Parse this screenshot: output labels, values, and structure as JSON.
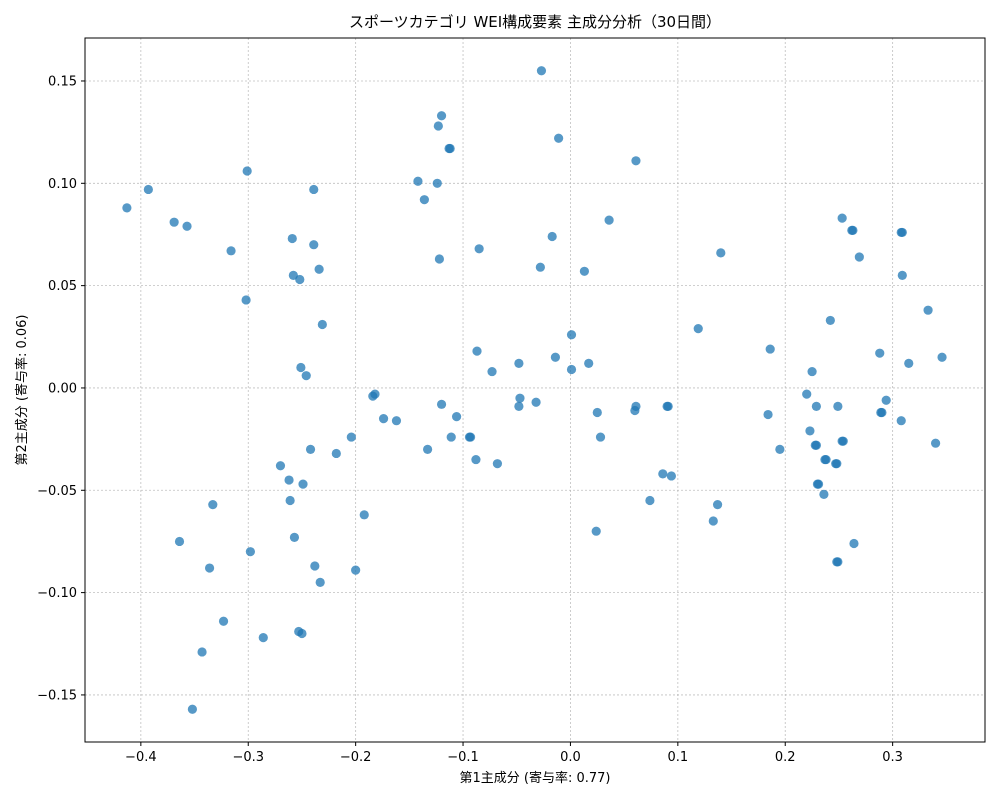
{
  "chart_data": {
    "type": "scatter",
    "title": "スポーツカテゴリ WEI構成要素 主成分分析（30日間）",
    "xlabel": "第1主成分 (寄与率: 0.77)",
    "ylabel": "第2主成分 (寄与率: 0.06)",
    "xlim": [
      -0.452,
      0.386
    ],
    "ylim": [
      -0.173,
      0.171
    ],
    "xticks": [
      -0.4,
      -0.3,
      -0.2,
      -0.1,
      0.0,
      0.1,
      0.2,
      0.3
    ],
    "xtick_labels": [
      "−0.4",
      "−0.3",
      "−0.2",
      "−0.1",
      "0.0",
      "0.1",
      "0.2",
      "0.3"
    ],
    "yticks": [
      -0.15,
      -0.1,
      -0.05,
      0.0,
      0.05,
      0.1,
      0.15
    ],
    "ytick_labels": [
      "−0.15",
      "−0.10",
      "−0.05",
      "0.00",
      "0.05",
      "0.10",
      "0.15"
    ],
    "grid": true,
    "color": "#1f77b4",
    "points": [
      [
        -0.413,
        0.088
      ],
      [
        -0.393,
        0.097
      ],
      [
        -0.369,
        0.081
      ],
      [
        -0.357,
        0.079
      ],
      [
        -0.316,
        0.067
      ],
      [
        -0.301,
        0.106
      ],
      [
        -0.302,
        0.043
      ],
      [
        -0.259,
        0.073
      ],
      [
        -0.258,
        0.055
      ],
      [
        -0.252,
        0.053
      ],
      [
        -0.239,
        0.097
      ],
      [
        -0.239,
        0.07
      ],
      [
        -0.234,
        0.058
      ],
      [
        -0.231,
        0.031
      ],
      [
        -0.251,
        0.01
      ],
      [
        -0.246,
        0.006
      ],
      [
        -0.142,
        0.101
      ],
      [
        -0.136,
        0.092
      ],
      [
        -0.124,
        0.1
      ],
      [
        -0.123,
        0.128
      ],
      [
        -0.12,
        0.133
      ],
      [
        -0.113,
        0.117
      ],
      [
        -0.112,
        0.117
      ],
      [
        -0.122,
        0.063
      ],
      [
        -0.085,
        0.068
      ],
      [
        -0.027,
        0.155
      ],
      [
        -0.011,
        0.122
      ],
      [
        -0.017,
        0.074
      ],
      [
        -0.028,
        0.059
      ],
      [
        0.061,
        0.111
      ],
      [
        0.036,
        0.082
      ],
      [
        0.013,
        0.057
      ],
      [
        0.14,
        0.066
      ],
      [
        0.001,
        0.026
      ],
      [
        -0.087,
        0.018
      ],
      [
        -0.073,
        0.008
      ],
      [
        -0.048,
        0.012
      ],
      [
        -0.014,
        0.015
      ],
      [
        0.001,
        0.009
      ],
      [
        0.017,
        0.012
      ],
      [
        0.119,
        0.029
      ],
      [
        0.186,
        0.019
      ],
      [
        0.225,
        0.008
      ],
      [
        0.242,
        0.033
      ],
      [
        0.253,
        0.083
      ],
      [
        0.262,
        0.077
      ],
      [
        0.263,
        0.077
      ],
      [
        0.269,
        0.064
      ],
      [
        0.308,
        0.076
      ],
      [
        0.309,
        0.076
      ],
      [
        0.309,
        0.055
      ],
      [
        0.333,
        0.038
      ],
      [
        0.288,
        0.017
      ],
      [
        0.315,
        0.012
      ],
      [
        0.346,
        0.015
      ],
      [
        -0.184,
        -0.004
      ],
      [
        -0.182,
        -0.003
      ],
      [
        -0.174,
        -0.015
      ],
      [
        -0.162,
        -0.016
      ],
      [
        -0.204,
        -0.024
      ],
      [
        -0.218,
        -0.032
      ],
      [
        -0.242,
        -0.03
      ],
      [
        -0.27,
        -0.038
      ],
      [
        -0.262,
        -0.045
      ],
      [
        -0.249,
        -0.047
      ],
      [
        -0.261,
        -0.055
      ],
      [
        -0.333,
        -0.057
      ],
      [
        -0.364,
        -0.075
      ],
      [
        -0.298,
        -0.08
      ],
      [
        -0.257,
        -0.073
      ],
      [
        -0.192,
        -0.062
      ],
      [
        -0.238,
        -0.087
      ],
      [
        -0.233,
        -0.095
      ],
      [
        -0.2,
        -0.089
      ],
      [
        -0.336,
        -0.088
      ],
      [
        -0.323,
        -0.114
      ],
      [
        -0.286,
        -0.122
      ],
      [
        -0.253,
        -0.119
      ],
      [
        -0.25,
        -0.12
      ],
      [
        -0.343,
        -0.129
      ],
      [
        -0.352,
        -0.157
      ],
      [
        -0.12,
        -0.008
      ],
      [
        -0.106,
        -0.014
      ],
      [
        -0.111,
        -0.024
      ],
      [
        -0.094,
        -0.024
      ],
      [
        -0.093,
        -0.024
      ],
      [
        -0.133,
        -0.03
      ],
      [
        -0.088,
        -0.035
      ],
      [
        -0.068,
        -0.037
      ],
      [
        -0.047,
        -0.005
      ],
      [
        -0.048,
        -0.009
      ],
      [
        -0.032,
        -0.007
      ],
      [
        0.025,
        -0.012
      ],
      [
        0.028,
        -0.024
      ],
      [
        0.06,
        -0.011
      ],
      [
        0.061,
        -0.009
      ],
      [
        0.09,
        -0.009
      ],
      [
        0.091,
        -0.009
      ],
      [
        0.086,
        -0.042
      ],
      [
        0.094,
        -0.043
      ],
      [
        0.074,
        -0.055
      ],
      [
        0.137,
        -0.057
      ],
      [
        0.133,
        -0.065
      ],
      [
        0.024,
        -0.07
      ],
      [
        0.184,
        -0.013
      ],
      [
        0.195,
        -0.03
      ],
      [
        0.22,
        -0.003
      ],
      [
        0.223,
        -0.021
      ],
      [
        0.229,
        -0.009
      ],
      [
        0.249,
        -0.009
      ],
      [
        0.228,
        -0.028
      ],
      [
        0.229,
        -0.028
      ],
      [
        0.237,
        -0.035
      ],
      [
        0.238,
        -0.035
      ],
      [
        0.247,
        -0.037
      ],
      [
        0.248,
        -0.037
      ],
      [
        0.253,
        -0.026
      ],
      [
        0.254,
        -0.026
      ],
      [
        0.23,
        -0.047
      ],
      [
        0.231,
        -0.047
      ],
      [
        0.236,
        -0.052
      ],
      [
        0.248,
        -0.085
      ],
      [
        0.249,
        -0.085
      ],
      [
        0.264,
        -0.076
      ],
      [
        0.289,
        -0.012
      ],
      [
        0.29,
        -0.012
      ],
      [
        0.294,
        -0.006
      ],
      [
        0.308,
        -0.016
      ],
      [
        0.34,
        -0.027
      ]
    ]
  }
}
